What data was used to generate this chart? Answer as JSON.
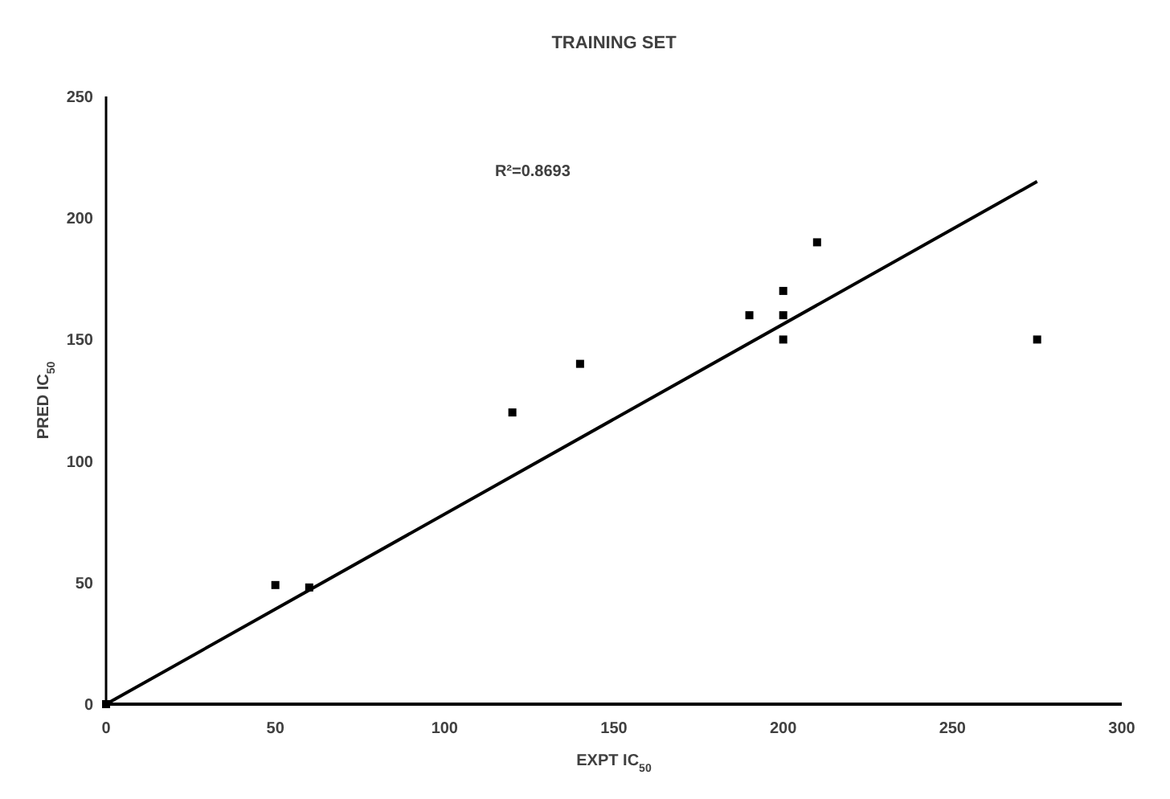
{
  "chart_data": {
    "type": "scatter",
    "title": "TRAINING SET",
    "xlabel": "EXPT IC$_{50}$",
    "ylabel": "PRED IC$_{50}$",
    "annotations": [
      "R²=0.8693"
    ],
    "xlim": [
      0,
      300
    ],
    "xticks": [
      0,
      50,
      100,
      150,
      200,
      250,
      300
    ],
    "ylim": [
      0,
      250
    ],
    "yticks": [
      0,
      50,
      100,
      150,
      200,
      250
    ],
    "marker": "square",
    "grid": false,
    "series": [
      {
        "color": "#000000",
        "x": [
          0,
          50,
          60,
          120,
          140,
          190,
          200,
          200,
          200,
          210,
          275
        ],
        "values": [
          0,
          49,
          48,
          120,
          140,
          160,
          170,
          160,
          150,
          190,
          150
        ]
      },
      {
        "type": "line",
        "color": "#000000",
        "line_style": "solid",
        "marker": "none",
        "x": [
          0,
          275
        ],
        "values": [
          0,
          215
        ]
      }
    ]
  }
}
